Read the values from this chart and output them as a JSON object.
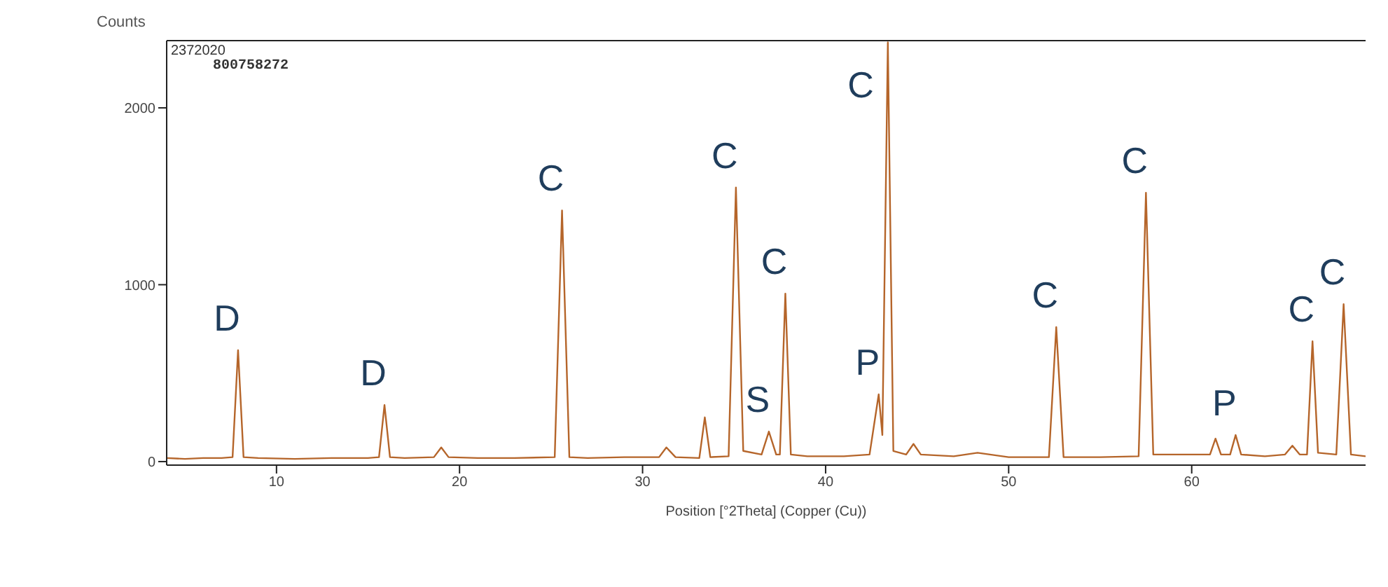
{
  "chart_data": {
    "type": "line",
    "ylabel": "Counts",
    "xlabel": "Position [°2Theta] (Copper (Cu))",
    "xlim": [
      4,
      69.5
    ],
    "xticks": [
      10,
      20,
      30,
      40,
      50,
      60
    ],
    "ylim": [
      -20,
      2380
    ],
    "yticks": [
      0,
      1000,
      2000
    ],
    "grid": false,
    "marker": "none",
    "line_style": "solid",
    "series": [
      {
        "color": "#b5652a",
        "x": [
          4,
          5,
          6,
          7,
          7.6,
          7.9,
          8.2,
          9,
          11,
          13,
          15,
          15.6,
          15.9,
          16.2,
          17,
          18.6,
          19,
          19.4,
          21,
          23,
          25.2,
          25.6,
          26,
          27,
          29,
          30.9,
          31.3,
          31.8,
          33.1,
          33.4,
          33.7,
          34.7,
          35.1,
          35.5,
          36.5,
          36.9,
          37.3,
          37.5,
          37.8,
          38.1,
          39,
          41,
          42.4,
          42.9,
          43.1,
          43.4,
          43.7,
          44.4,
          44.8,
          45.2,
          47,
          48.3,
          50,
          52.2,
          52.6,
          53,
          55,
          57.1,
          57.5,
          57.9,
          59,
          61,
          61.3,
          61.6,
          62.1,
          62.4,
          62.7,
          64,
          65.1,
          65.5,
          65.9,
          66.3,
          66.6,
          66.9,
          67.9,
          68.3,
          68.7,
          69.5
        ],
        "values": [
          20,
          15,
          20,
          20,
          25,
          630,
          25,
          20,
          15,
          20,
          20,
          25,
          320,
          25,
          20,
          25,
          80,
          25,
          20,
          20,
          25,
          1420,
          25,
          20,
          25,
          25,
          80,
          25,
          20,
          250,
          25,
          30,
          1550,
          60,
          40,
          170,
          40,
          40,
          950,
          40,
          30,
          30,
          40,
          380,
          150,
          2370,
          60,
          40,
          100,
          40,
          30,
          50,
          25,
          25,
          760,
          25,
          25,
          30,
          1520,
          40,
          40,
          40,
          130,
          40,
          40,
          150,
          40,
          30,
          40,
          90,
          40,
          40,
          680,
          50,
          40,
          890,
          40,
          30
        ]
      }
    ],
    "annotations": [
      "2372020",
      "800758272",
      {
        "text": "D",
        "x": 7.9,
        "y": 630
      },
      {
        "text": "D",
        "x": 15.9,
        "y": 320
      },
      {
        "text": "C",
        "x": 25.6,
        "y": 1420
      },
      {
        "text": "C",
        "x": 35.1,
        "y": 1550
      },
      {
        "text": "S",
        "x": 36.9,
        "y": 170
      },
      {
        "text": "C",
        "x": 37.8,
        "y": 950
      },
      {
        "text": "P",
        "x": 42.9,
        "y": 380
      },
      {
        "text": "C",
        "x": 43.4,
        "y": 2370
      },
      {
        "text": "C",
        "x": 52.6,
        "y": 760
      },
      {
        "text": "C",
        "x": 57.5,
        "y": 1520
      },
      {
        "text": "P",
        "x": 62.4,
        "y": 150
      },
      {
        "text": "C",
        "x": 66.6,
        "y": 680
      },
      {
        "text": "C",
        "x": 68.3,
        "y": 890
      }
    ]
  }
}
